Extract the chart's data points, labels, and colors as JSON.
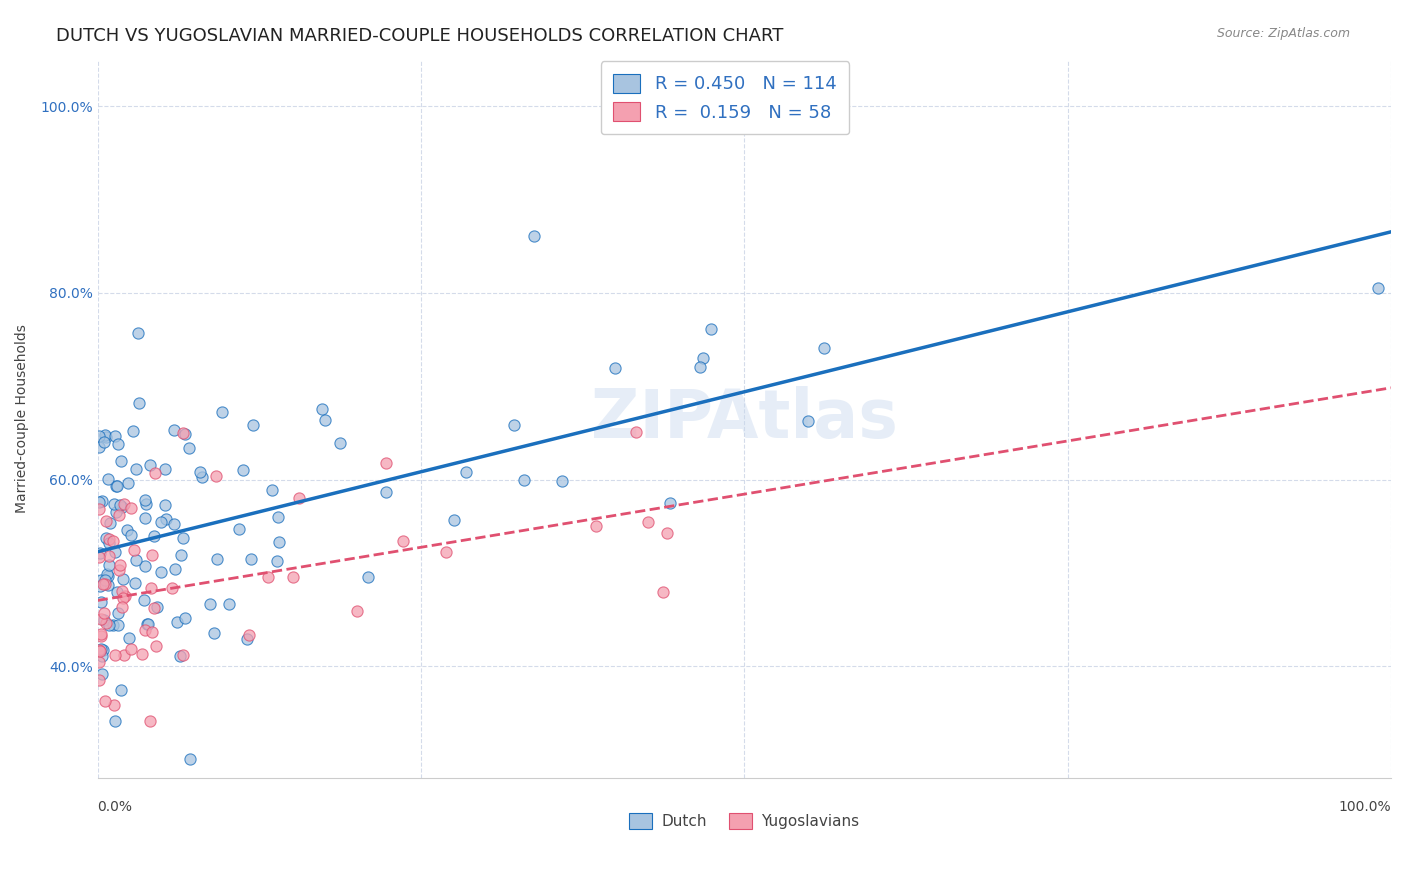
{
  "title": "DUTCH VS YUGOSLAVIAN MARRIED-COUPLE HOUSEHOLDS CORRELATION CHART",
  "source": "Source: ZipAtlas.com",
  "ylabel": "Married-couple Households",
  "watermark": "ZIPAtlas",
  "dutch_R": 0.45,
  "dutch_N": 114,
  "yugo_R": 0.159,
  "yugo_N": 58,
  "dutch_color": "#a8c4e0",
  "dutch_line_color": "#1a6fbd",
  "yugo_color": "#f4a0b0",
  "yugo_line_color": "#e05070",
  "legend_text_color": "#3070c0",
  "ytick_color": "#3070c0",
  "background": "#ffffff",
  "grid_color": "#d0d8e8",
  "xlim": [
    0.0,
    1.0
  ],
  "ylim": [
    0.28,
    1.05
  ],
  "yticks": [
    0.4,
    0.6,
    0.8,
    1.0
  ],
  "ytick_labels": [
    "40.0%",
    "60.0%",
    "80.0%",
    "100.0%"
  ],
  "title_fontsize": 13,
  "axis_fontsize": 10
}
